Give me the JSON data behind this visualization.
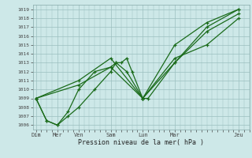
{
  "background_color": "#cde8e8",
  "grid_color": "#9bbfbf",
  "line_color": "#1a6b1a",
  "title": "Pression niveau de la mer( hPa )",
  "ylabel_ticks": [
    1006,
    1007,
    1008,
    1009,
    1010,
    1011,
    1012,
    1013,
    1014,
    1015,
    1016,
    1017,
    1018,
    1019
  ],
  "ylim": [
    1005.5,
    1019.5
  ],
  "x_tick_labels": [
    "Dim",
    "Mer",
    "Ven",
    "Sam",
    "Lun",
    "Mar",
    "Jeu"
  ],
  "x_tick_positions": [
    0,
    2,
    4,
    7,
    10,
    13,
    19
  ],
  "xlim": [
    -0.3,
    20.0
  ],
  "series1": {
    "x": [
      0,
      1,
      2,
      3,
      4,
      5.5,
      7,
      7.5,
      8,
      8.5,
      9,
      10,
      10.5,
      13,
      16,
      19
    ],
    "y": [
      1009,
      1006.5,
      1006,
      1007,
      1008,
      1010,
      1012,
      1013,
      1013,
      1013.5,
      1012,
      1009,
      1009,
      1013,
      1017,
      1019
    ]
  },
  "series2": {
    "x": [
      0,
      1,
      2,
      3,
      4,
      5.5,
      7,
      7.5,
      8.5,
      10,
      13,
      16,
      19
    ],
    "y": [
      1009,
      1006.5,
      1006,
      1007.5,
      1010,
      1012,
      1012.5,
      1013,
      1012,
      1009,
      1013.5,
      1015,
      1018
    ]
  },
  "series3": {
    "x": [
      0,
      4,
      7,
      10,
      13,
      16,
      19
    ],
    "y": [
      1009,
      1010.5,
      1012.5,
      1009,
      1013,
      1016.5,
      1018.5
    ]
  },
  "series4": {
    "x": [
      0,
      4,
      7,
      10,
      13,
      16,
      19
    ],
    "y": [
      1009,
      1011,
      1013.5,
      1009,
      1015,
      1017.5,
      1019
    ]
  }
}
